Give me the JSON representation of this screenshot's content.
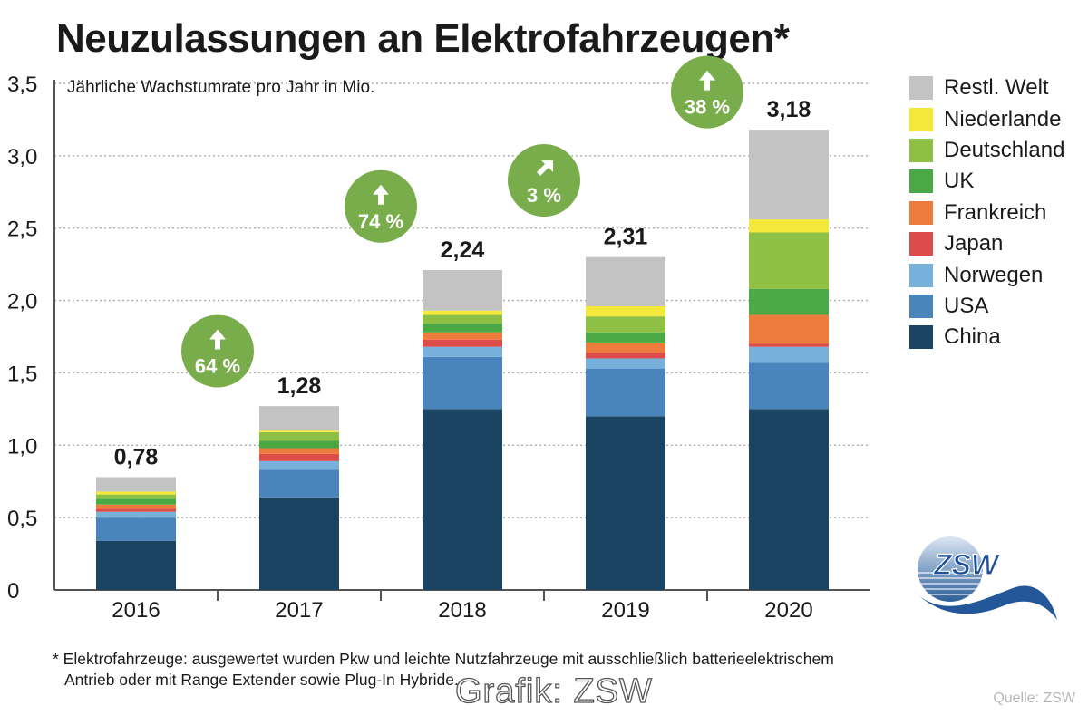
{
  "title": "Neuzulassungen an Elektrofahrzeugen*",
  "footnote": {
    "line1": "* Elektrofahrzeuge: ausgewertet wurden Pkw und leichte Nutzfahrzeuge mit ausschließlich batterieelektrischem",
    "line2": "Antrieb oder mit Range Extender sowie Plug-In Hybride."
  },
  "source": "Quelle: ZSW",
  "watermark": "Grafik: ZSW",
  "logo_text": "ZSW",
  "chart_data": {
    "type": "bar",
    "stacked": true,
    "title": "Neuzulassungen an Elektrofahrzeugen*",
    "subtitle": "Jährliche Wachstumrate pro Jahr in Mio.",
    "xlabel": "",
    "ylabel": "",
    "ylim": [
      0,
      3.5
    ],
    "yticks": [
      "0",
      "0,5",
      "1,0",
      "1,5",
      "2,0",
      "2,5",
      "3,0",
      "3,5"
    ],
    "ytick_values": [
      0,
      0.5,
      1.0,
      1.5,
      2.0,
      2.5,
      3.0,
      3.5
    ],
    "grid": true,
    "legend_position": "right",
    "categories": [
      "2016",
      "2017",
      "2018",
      "2019",
      "2020"
    ],
    "totals_labels": [
      "0,78",
      "1,28",
      "2,24",
      "2,31",
      "3,18"
    ],
    "growth_labels": [
      "64 %",
      "74 %",
      "3 %",
      "38 %"
    ],
    "growth_arrows": [
      "up",
      "up",
      "up-right",
      "up"
    ],
    "growth_levels": [
      1.65,
      2.65,
      2.83,
      3.44
    ],
    "series": [
      {
        "name": "China",
        "color": "#1b4462",
        "values": [
          0.34,
          0.64,
          1.25,
          1.2,
          1.25
        ]
      },
      {
        "name": "USA",
        "color": "#4a84bd",
        "values": [
          0.16,
          0.19,
          0.36,
          0.33,
          0.32
        ]
      },
      {
        "name": "Norwegen",
        "color": "#78b0dc",
        "values": [
          0.04,
          0.06,
          0.07,
          0.07,
          0.11
        ]
      },
      {
        "name": "Japan",
        "color": "#de4b4b",
        "values": [
          0.02,
          0.05,
          0.05,
          0.04,
          0.02
        ]
      },
      {
        "name": "Frankreich",
        "color": "#ec7b3c",
        "values": [
          0.03,
          0.04,
          0.05,
          0.07,
          0.2
        ]
      },
      {
        "name": "UK",
        "color": "#4aa845",
        "values": [
          0.04,
          0.05,
          0.06,
          0.07,
          0.18
        ]
      },
      {
        "name": "Deutschland",
        "color": "#8ec045",
        "values": [
          0.03,
          0.06,
          0.06,
          0.11,
          0.39
        ]
      },
      {
        "name": "Niederlande",
        "color": "#f4e93a",
        "values": [
          0.02,
          0.01,
          0.03,
          0.07,
          0.09
        ]
      },
      {
        "name": "Restl. Welt",
        "color": "#c3c3c3",
        "values": [
          0.1,
          0.17,
          0.28,
          0.34,
          0.62
        ]
      }
    ],
    "colors": {
      "growth_circle": "#79ad4b",
      "grid": "#aaaaaa",
      "axis": "#555555"
    }
  }
}
